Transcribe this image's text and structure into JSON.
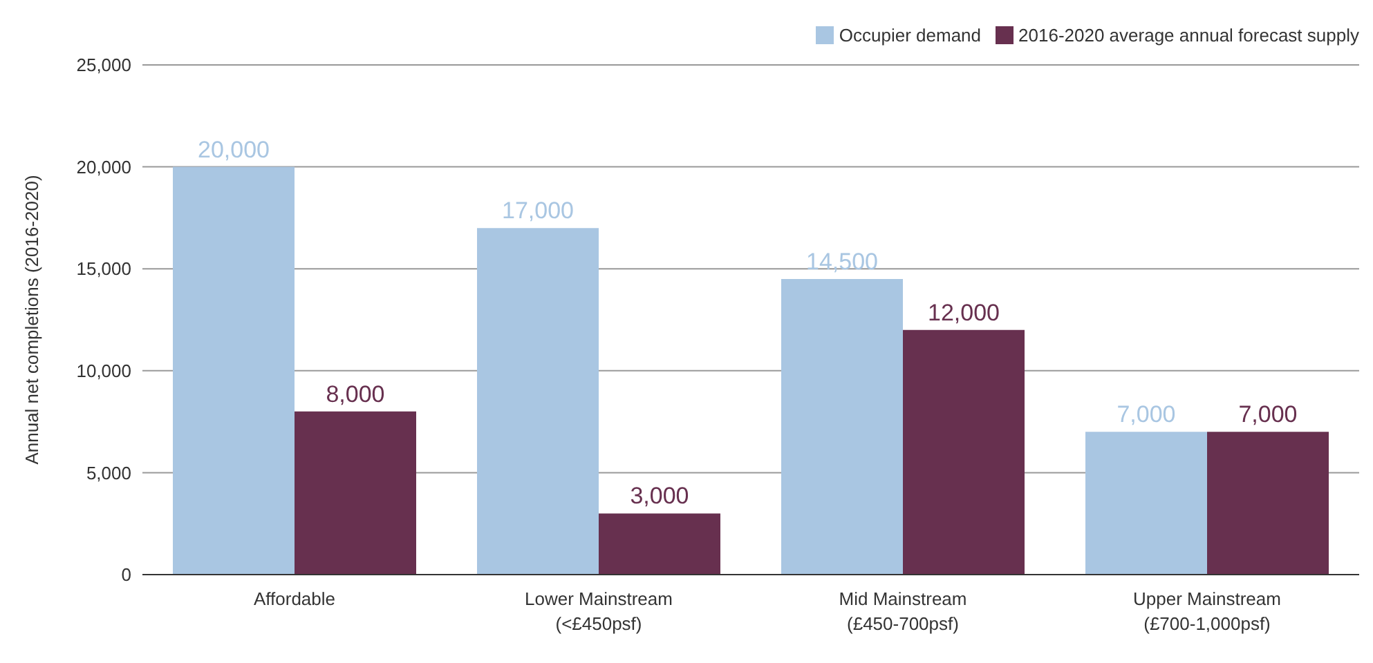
{
  "chart_data": {
    "type": "bar",
    "ylabel": "Annual net completions (2016-2020)",
    "categories": [
      "Affordable",
      "Lower Mainstream\n(<£450psf)",
      "Mid Mainstream\n(£450-700psf)",
      "Upper Mainstream\n(£700-1,000psf)"
    ],
    "series": [
      {
        "name": "Occupier demand",
        "color": "#a9c6e2",
        "values": [
          20000,
          17000,
          14500,
          7000
        ],
        "value_labels": [
          "20,000",
          "17,000",
          "14,500",
          "7,000"
        ]
      },
      {
        "name": "2016-2020 average annual forecast supply",
        "color": "#67304f",
        "values": [
          8000,
          3000,
          12000,
          7000
        ],
        "value_labels": [
          "8,000",
          "3,000",
          "12,000",
          "7,000"
        ]
      }
    ],
    "ylim": [
      0,
      25000
    ],
    "yticks": [
      0,
      {
        "value": 5000,
        "label": "5,000"
      },
      {
        "value": 10000,
        "label": "10,000"
      },
      {
        "value": 15000,
        "label": "15,000"
      },
      {
        "value": 20000,
        "label": "20,000"
      },
      {
        "value": 25000,
        "label": "25,000"
      }
    ],
    "grid": "y",
    "legend": "top right"
  }
}
